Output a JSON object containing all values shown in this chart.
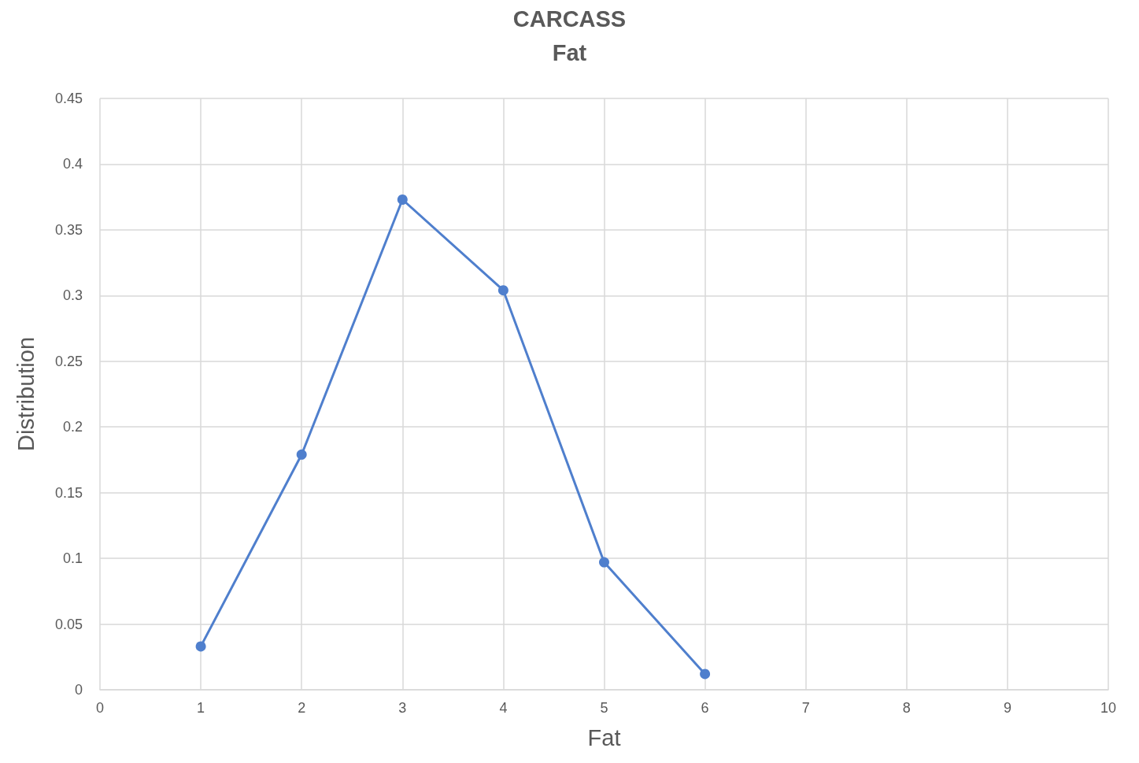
{
  "chart_data": {
    "type": "line",
    "title": "CARCASS",
    "subtitle": "Fat",
    "xlabel": "Fat",
    "ylabel": "Distribution",
    "x": [
      1,
      2,
      3,
      4,
      5,
      6
    ],
    "series": [
      {
        "color": "#4f7fcd",
        "values": [
          0.033,
          0.179,
          0.373,
          0.304,
          0.097,
          0.012
        ]
      }
    ],
    "xlim": [
      0,
      10
    ],
    "xticks": [
      0,
      1,
      2,
      3,
      4,
      5,
      6,
      7,
      8,
      9,
      10
    ],
    "ylim": [
      0,
      0.45
    ],
    "yticks": [
      0,
      0.05,
      0.1,
      0.15,
      0.2,
      0.25,
      0.3,
      0.35,
      0.4,
      0.45
    ],
    "grid": true,
    "marker": "circle",
    "line_style": "solid"
  }
}
